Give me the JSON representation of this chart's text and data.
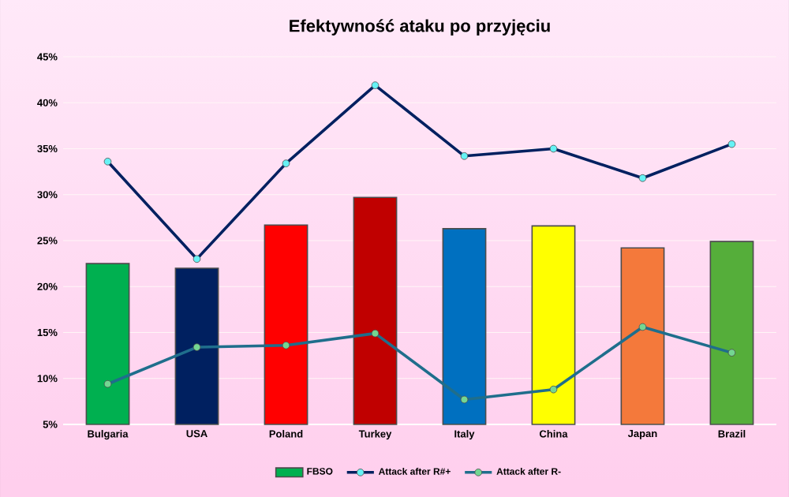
{
  "chart_data": {
    "type": "bar",
    "title": "Efektywność ataku po przyjęciu",
    "categories": [
      "Bulgaria",
      "USA",
      "Poland",
      "Turkey",
      "Italy",
      "China",
      "Japan",
      "Brazil"
    ],
    "series": [
      {
        "name": "FBSO",
        "colors": [
          "#00b050",
          "#002060",
          "#ff0000",
          "#c00000",
          "#0070c0",
          "#ffff00",
          "#f4793b",
          "#55ae3a"
        ],
        "values": [
          22.5,
          22.0,
          26.7,
          29.7,
          26.3,
          26.6,
          24.2,
          24.9
        ]
      },
      {
        "name": "Attack after R#+",
        "type": "line",
        "color": "#002060",
        "values": [
          33.6,
          23.0,
          33.4,
          41.9,
          34.2,
          35.0,
          31.8,
          35.5
        ]
      },
      {
        "name": "Attack after R-",
        "type": "line",
        "color": "#1f6e8c",
        "values": [
          9.4,
          13.4,
          13.6,
          14.9,
          7.7,
          8.8,
          15.6,
          12.8
        ]
      }
    ],
    "ylim": [
      5,
      45
    ],
    "yticks": [
      {
        "value": 5,
        "label": "5%"
      },
      {
        "value": 10,
        "label": "10%"
      },
      {
        "value": 15,
        "label": "15%"
      },
      {
        "value": 20,
        "label": "20%"
      },
      {
        "value": 25,
        "label": "25%"
      },
      {
        "value": 30,
        "label": "30%"
      },
      {
        "value": 35,
        "label": "35%"
      },
      {
        "value": 40,
        "label": "40%"
      },
      {
        "value": 45,
        "label": "45%"
      }
    ],
    "grid": "y",
    "legend": "bottom",
    "marker": "circle"
  }
}
